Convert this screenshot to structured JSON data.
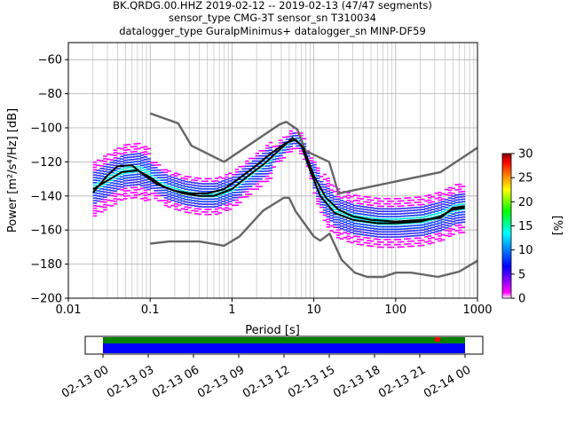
{
  "chart_data": [
    {
      "type": "heatmap",
      "subtype": "probabilistic-power-spectral-density",
      "title_lines": [
        "BK.QRDG.00.HHZ   2019-02-12 -- 2019-02-13  (47/47 segments)",
        "sensor_type CMG-3T sensor_sn T310034",
        "datalogger_type GuralpMinimus+ datalogger_sn MINP-DF59"
      ],
      "xlabel": "Period [s]",
      "ylabel": "Power [m²/s⁴/Hz] [dB]",
      "xscale": "log",
      "xlim": [
        0.01,
        1000
      ],
      "ylim": [
        -200,
        -50
      ],
      "x_ticks": [
        0.01,
        0.1,
        1,
        10,
        100,
        1000
      ],
      "x_tick_labels": [
        "0.01",
        "0.1",
        "1",
        "10",
        "100",
        "1000"
      ],
      "y_ticks": [
        -200,
        -180,
        -160,
        -140,
        -120,
        -100,
        -80,
        -60
      ],
      "y_tick_labels": [
        "−200",
        "−180",
        "−160",
        "−140",
        "−120",
        "−100",
        "−80",
        "−60"
      ],
      "grid": true,
      "colorbar": {
        "label": "[%]",
        "range": [
          0,
          30
        ],
        "ticks": [
          0,
          5,
          10,
          15,
          20,
          25,
          30
        ],
        "tick_labels": [
          "0",
          "5",
          "10",
          "15",
          "20",
          "25",
          "30"
        ],
        "colors": [
          "#ffffff",
          "#ff00ff",
          "#0000ff",
          "#00ffff",
          "#00ff00",
          "#ffff00",
          "#ff8000",
          "#ff0000",
          "#800000"
        ]
      },
      "noise_model_color": "#666666",
      "nhnm": [
        [
          0.1,
          -91.5
        ],
        [
          0.22,
          -97.4
        ],
        [
          0.32,
          -110.5
        ],
        [
          0.8,
          -120
        ],
        [
          3.8,
          -98
        ],
        [
          4.6,
          -96.5
        ],
        [
          6.3,
          -101
        ],
        [
          7.9,
          -113.5
        ],
        [
          15.4,
          -120
        ],
        [
          20,
          -138.5
        ],
        [
          354.8,
          -126
        ],
        [
          10000,
          -80
        ]
      ],
      "nlnm": [
        [
          0.1,
          -168
        ],
        [
          0.17,
          -166.7
        ],
        [
          0.4,
          -166.7
        ],
        [
          0.8,
          -169.2
        ],
        [
          1.24,
          -163.7
        ],
        [
          2.4,
          -148.6
        ],
        [
          4.3,
          -141.1
        ],
        [
          5.0,
          -141.1
        ],
        [
          6.0,
          -149
        ],
        [
          10.0,
          -163.8
        ],
        [
          12.0,
          -166.2
        ],
        [
          15.6,
          -162.1
        ],
        [
          21.9,
          -177.5
        ],
        [
          31.6,
          -185
        ],
        [
          45,
          -187.5
        ],
        [
          70,
          -187.5
        ],
        [
          101,
          -185
        ],
        [
          154,
          -185
        ],
        [
          328,
          -187.5
        ],
        [
          600,
          -184.4
        ],
        [
          1000,
          -178
        ]
      ],
      "mean_curve": [
        [
          0.02,
          -138
        ],
        [
          0.03,
          -128
        ],
        [
          0.04,
          -122.5
        ],
        [
          0.06,
          -122
        ],
        [
          0.08,
          -127
        ],
        [
          0.12,
          -133
        ],
        [
          0.2,
          -137
        ],
        [
          0.3,
          -138.5
        ],
        [
          0.5,
          -138.5
        ],
        [
          0.8,
          -136
        ],
        [
          1.2,
          -130
        ],
        [
          2,
          -122
        ],
        [
          3,
          -115
        ],
        [
          4.5,
          -109
        ],
        [
          6,
          -107
        ],
        [
          7.5,
          -112
        ],
        [
          10,
          -128
        ],
        [
          14,
          -141
        ],
        [
          20,
          -148
        ],
        [
          30,
          -152
        ],
        [
          50,
          -154
        ],
        [
          100,
          -155
        ],
        [
          200,
          -154
        ],
        [
          350,
          -153
        ],
        [
          500,
          -147
        ],
        [
          700,
          -146
        ]
      ],
      "mode_curve": [
        [
          0.02,
          -136
        ],
        [
          0.03,
          -131
        ],
        [
          0.045,
          -126
        ],
        [
          0.07,
          -125
        ],
        [
          0.1,
          -129
        ],
        [
          0.15,
          -135
        ],
        [
          0.25,
          -138.5
        ],
        [
          0.4,
          -140
        ],
        [
          0.6,
          -140
        ],
        [
          1,
          -136
        ],
        [
          1.5,
          -129
        ],
        [
          2.5,
          -121
        ],
        [
          4,
          -112
        ],
        [
          5.5,
          -106
        ],
        [
          7,
          -110
        ],
        [
          9,
          -125
        ],
        [
          12,
          -140
        ],
        [
          18,
          -150
        ],
        [
          30,
          -154
        ],
        [
          60,
          -156
        ],
        [
          100,
          -156
        ],
        [
          200,
          -155
        ],
        [
          350,
          -152
        ],
        [
          500,
          -148
        ],
        [
          700,
          -147
        ]
      ]
    },
    {
      "type": "timeline",
      "name": "data-coverage",
      "x_tick_labels": [
        "02-13 00",
        "02-13 03",
        "02-13 06",
        "02-13 09",
        "02-13 12",
        "02-13 15",
        "02-13 18",
        "02-13 21",
        "02-14 00"
      ],
      "rows": [
        {
          "color": "#008000"
        },
        {
          "color": "#0000ff"
        }
      ],
      "marker_color": "#ff0000"
    }
  ]
}
